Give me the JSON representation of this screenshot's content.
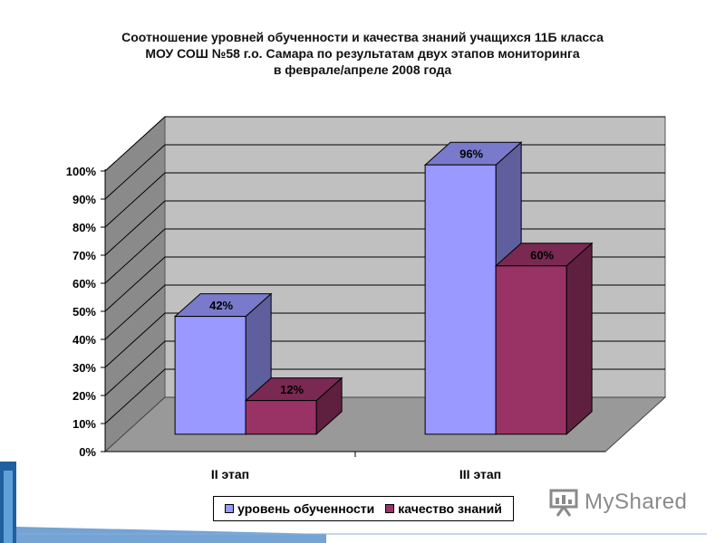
{
  "chart_data": {
    "type": "bar",
    "title": [
      "Соотношение уровней обученности и качества знаний учащихся 11Б класса",
      "МОУ СОШ №58 г.о. Самара по результатам двух этапов мониторинга",
      "в феврале/апреле 2008 года"
    ],
    "categories": [
      "II этап",
      "III этап"
    ],
    "series": [
      {
        "name": "уровень обученности",
        "values": [
          42,
          96
        ],
        "labels": [
          "42%",
          "96%"
        ],
        "color": "#9999ff"
      },
      {
        "name": "качество знаний",
        "values": [
          12,
          60
        ],
        "labels": [
          "12%",
          "60%"
        ],
        "color": "#993366"
      }
    ],
    "ylim": [
      0,
      100
    ],
    "yticks": [
      "0%",
      "10%",
      "20%",
      "30%",
      "40%",
      "50%",
      "60%",
      "70%",
      "80%",
      "90%",
      "100%"
    ],
    "grid": true,
    "legend": "bottom",
    "wall_color": "#c0c0c0",
    "floor_color": "#999999"
  },
  "watermark": {
    "text": "MyShared",
    "icon": "presentation-board-icon"
  }
}
